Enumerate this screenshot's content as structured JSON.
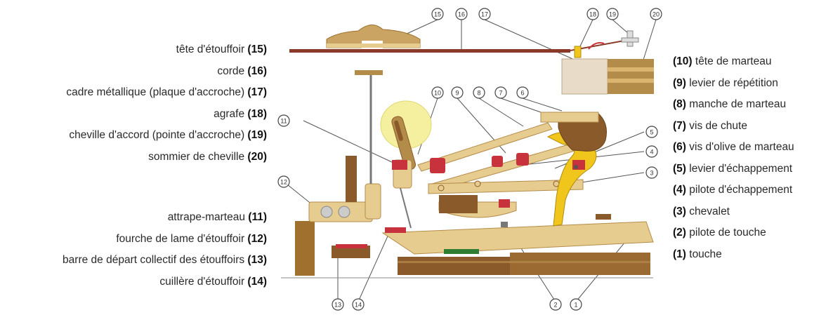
{
  "labels_left_top": [
    {
      "text": "tête d'étouffoir ",
      "num": "(15)"
    },
    {
      "text": "corde ",
      "num": "(16)"
    },
    {
      "text": "cadre métallique (plaque d'accroche) ",
      "num": "(17)"
    },
    {
      "text": "agrafe ",
      "num": "(18)"
    },
    {
      "text": "cheville d'accord (pointe d'accroche) ",
      "num": "(19)"
    },
    {
      "text": "sommier de cheville ",
      "num": "(20)"
    }
  ],
  "labels_left_bottom": [
    {
      "text": "attrape-marteau ",
      "num": "(11)"
    },
    {
      "text": "fourche de lame d'étouffoir ",
      "num": "(12)"
    },
    {
      "text": "barre de départ collectif des étouffoirs ",
      "num": "(13)"
    },
    {
      "text": "cuillère d'étouffoir ",
      "num": "(14)"
    }
  ],
  "labels_right": [
    {
      "num": "(10)",
      "text": " tête de marteau"
    },
    {
      "num": "(9)",
      "text": " levier de répétition"
    },
    {
      "num": "(8)",
      "text": " manche de marteau"
    },
    {
      "num": "(7)",
      "text": " vis de chute"
    },
    {
      "num": "(6)",
      "text": " vis d'olive de marteau"
    },
    {
      "num": "(5)",
      "text": " levier d'échappement"
    },
    {
      "num": "(4)",
      "text": " pilote d'échappement"
    },
    {
      "num": "(3)",
      "text": " chevalet"
    },
    {
      "num": "(2)",
      "text": " pilote de touche"
    },
    {
      "num": "(1)",
      "text": " touche"
    }
  ],
  "callouts": {
    "c15": "15",
    "c16": "16",
    "c17": "17",
    "c18": "18",
    "c19": "19",
    "c20": "20",
    "c10": "10",
    "c9": "9",
    "c8": "8",
    "c7": "7",
    "c6": "6",
    "c11": "11",
    "c5": "5",
    "c4": "4",
    "c3": "3",
    "c12": "12",
    "c13": "13",
    "c14": "14",
    "c2": "2",
    "c1": "1"
  },
  "colors": {
    "wood": "#e7cc8f",
    "wood_dark": "#b48c4a",
    "brown": "#8a5a2a",
    "felt_red": "#c8323c",
    "string": "#8b3a2a",
    "frame": "#e8dcc8",
    "green": "#2e7d32",
    "yellow_lever": "#f0c61c",
    "halo": "#f4f0a0"
  }
}
